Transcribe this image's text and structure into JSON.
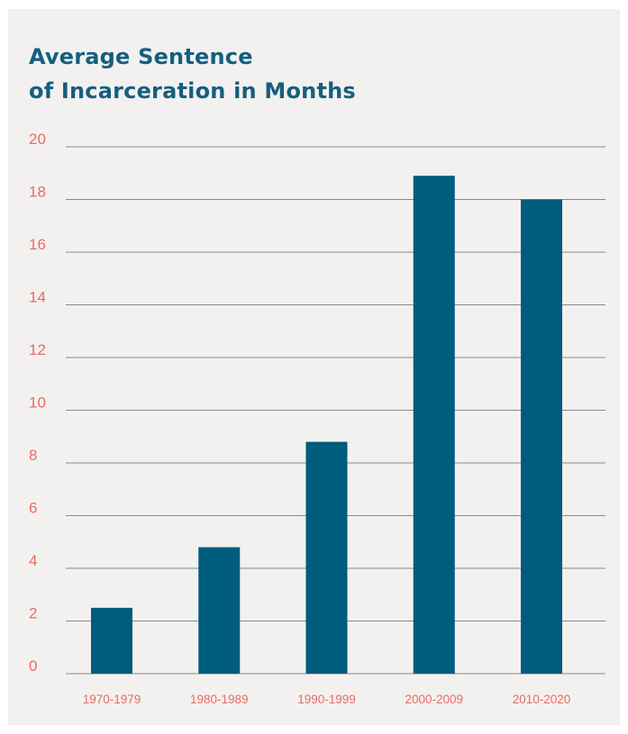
{
  "chart_data": {
    "type": "bar",
    "title_lines": [
      "Average Sentence",
      "of Incarceration in Months"
    ],
    "title": "Average Sentence of Incarceration in Months",
    "categories": [
      "1970-1979",
      "1980-1989",
      "1990-1999",
      "2000-2009",
      "2010-2020"
    ],
    "values": [
      2.5,
      4.8,
      8.8,
      18.9,
      18.0
    ],
    "ylim": [
      0,
      20
    ],
    "yticks": [
      0,
      2,
      4,
      6,
      8,
      10,
      12,
      14,
      16,
      18,
      20
    ],
    "grid": true,
    "xlabel": "",
    "ylabel": "",
    "colors": {
      "bar": "#005c7d",
      "title": "#155e80",
      "tick_label": "#ea6b63",
      "grid": "#8a8a8a",
      "panel": "#f2f1ef"
    }
  }
}
